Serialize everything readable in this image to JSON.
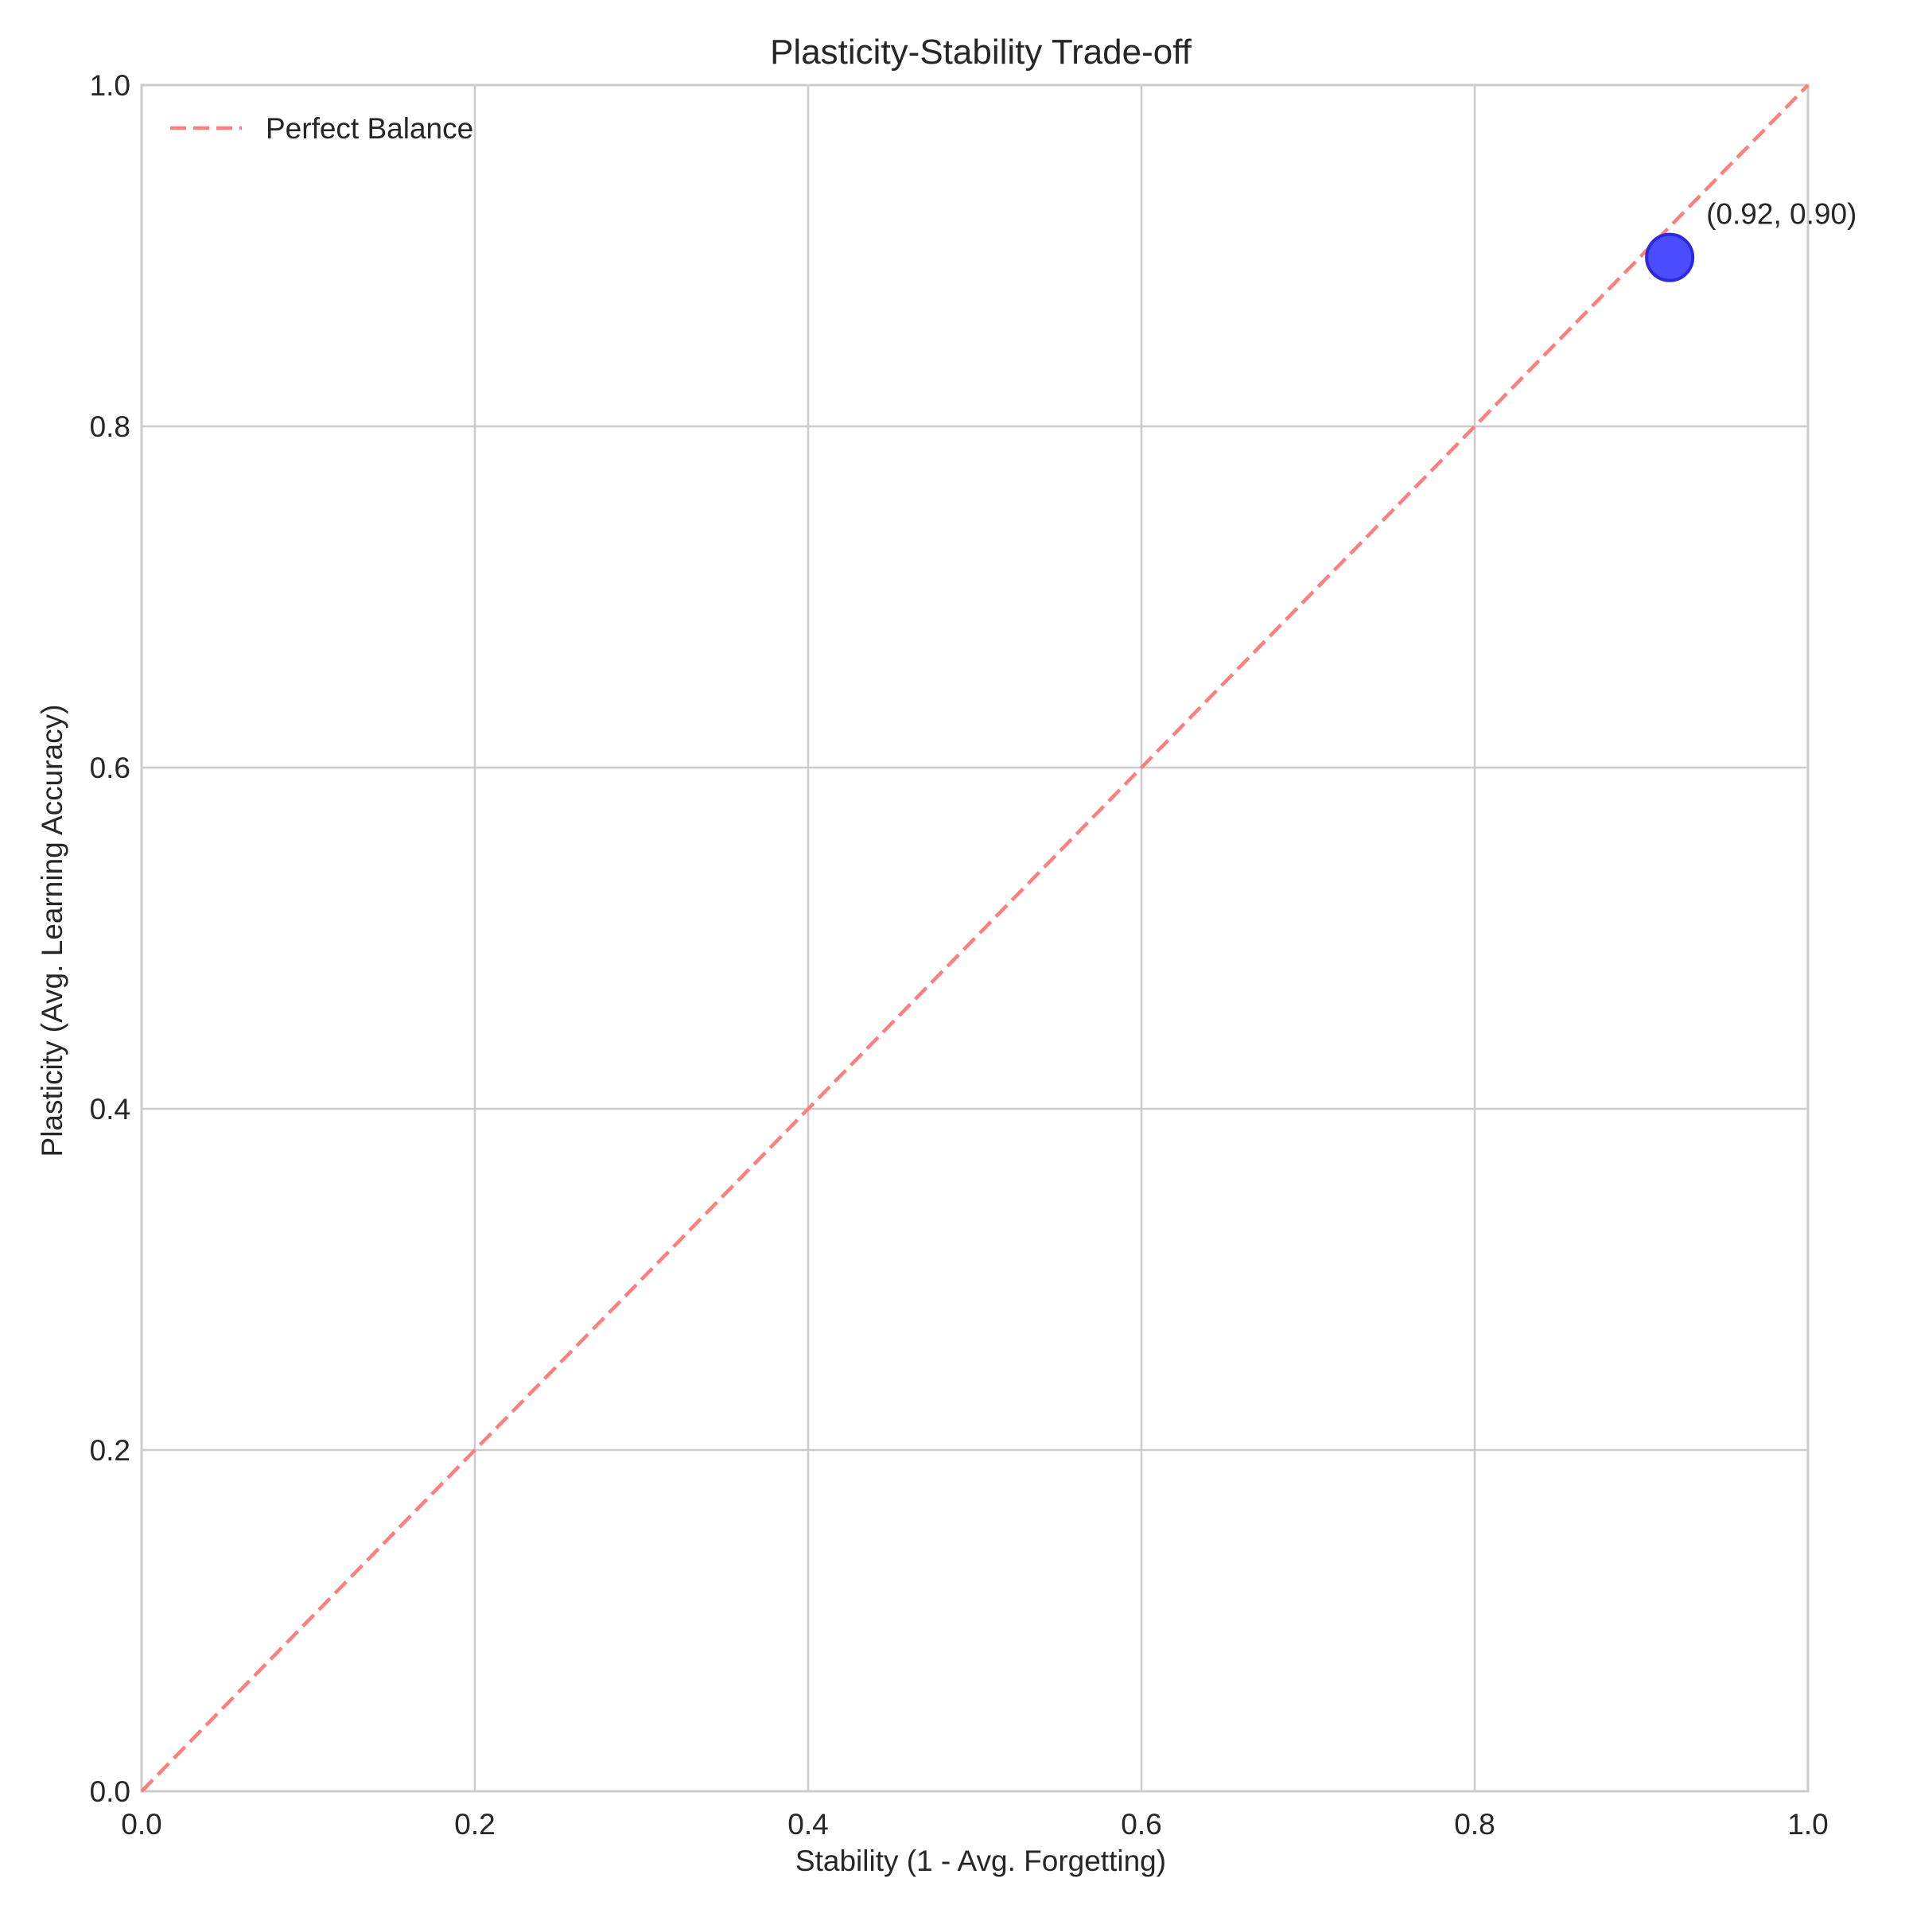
{
  "chart_data": {
    "type": "scatter",
    "title": "Plasticity-Stability Trade-off",
    "xlabel": "Stability (1 - Avg. Forgetting)",
    "ylabel": "Plasticity (Avg. Learning Accuracy)",
    "xlim": [
      0,
      1
    ],
    "ylim": [
      0,
      1
    ],
    "xticks": [
      "0.0",
      "0.2",
      "0.4",
      "0.6",
      "0.8",
      "1.0"
    ],
    "yticks": [
      "0.0",
      "0.2",
      "0.4",
      "0.6",
      "0.8",
      "1.0"
    ],
    "grid": true,
    "legend_position": "top-left",
    "reference_line": {
      "name": "Perfect Balance",
      "x": [
        0,
        1
      ],
      "y": [
        0,
        1
      ],
      "style": "dashed",
      "color": "#ff7f7f"
    },
    "points": [
      {
        "x": 0.917,
        "y": 0.899,
        "label": "(0.92, 0.90)",
        "color": "#3333ff"
      }
    ]
  }
}
